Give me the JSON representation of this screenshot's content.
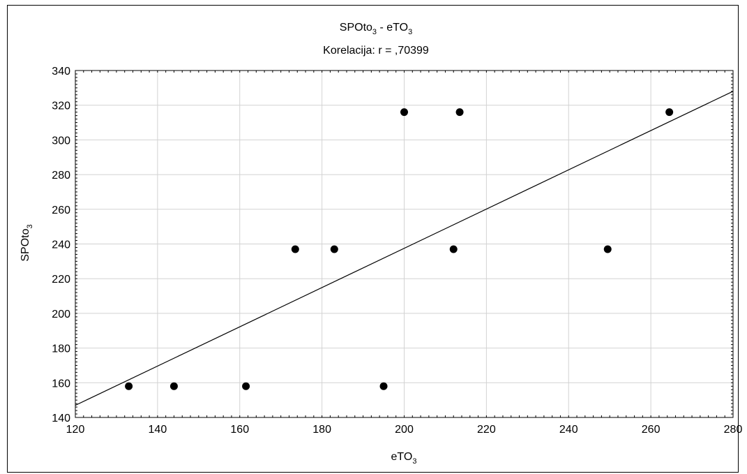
{
  "chart_data": {
    "type": "scatter",
    "title": {
      "main": "SPOto",
      "main_sub": "3",
      "sep": " - eTO",
      "sep_sub": "3"
    },
    "subtitle": "Korelacija: r = ,70399",
    "xlabel": {
      "text": "eTO",
      "sub": "3"
    },
    "ylabel": {
      "text": "SPOto",
      "sub": "3"
    },
    "xlim": [
      120,
      280
    ],
    "ylim": [
      140,
      340
    ],
    "xticks": [
      120,
      140,
      160,
      180,
      200,
      220,
      240,
      260,
      280
    ],
    "yticks": [
      140,
      160,
      180,
      200,
      220,
      240,
      260,
      280,
      300,
      320,
      340
    ],
    "grid": true,
    "points": [
      {
        "x": 133,
        "y": 158
      },
      {
        "x": 144,
        "y": 158
      },
      {
        "x": 161.5,
        "y": 158
      },
      {
        "x": 173.5,
        "y": 237
      },
      {
        "x": 183,
        "y": 237
      },
      {
        "x": 195,
        "y": 158
      },
      {
        "x": 200,
        "y": 316
      },
      {
        "x": 212,
        "y": 237
      },
      {
        "x": 213.5,
        "y": 316
      },
      {
        "x": 249.5,
        "y": 237
      },
      {
        "x": 264.5,
        "y": 316
      }
    ],
    "fit_line": {
      "x1": 120,
      "y1": 147,
      "x2": 280,
      "y2": 328
    }
  }
}
